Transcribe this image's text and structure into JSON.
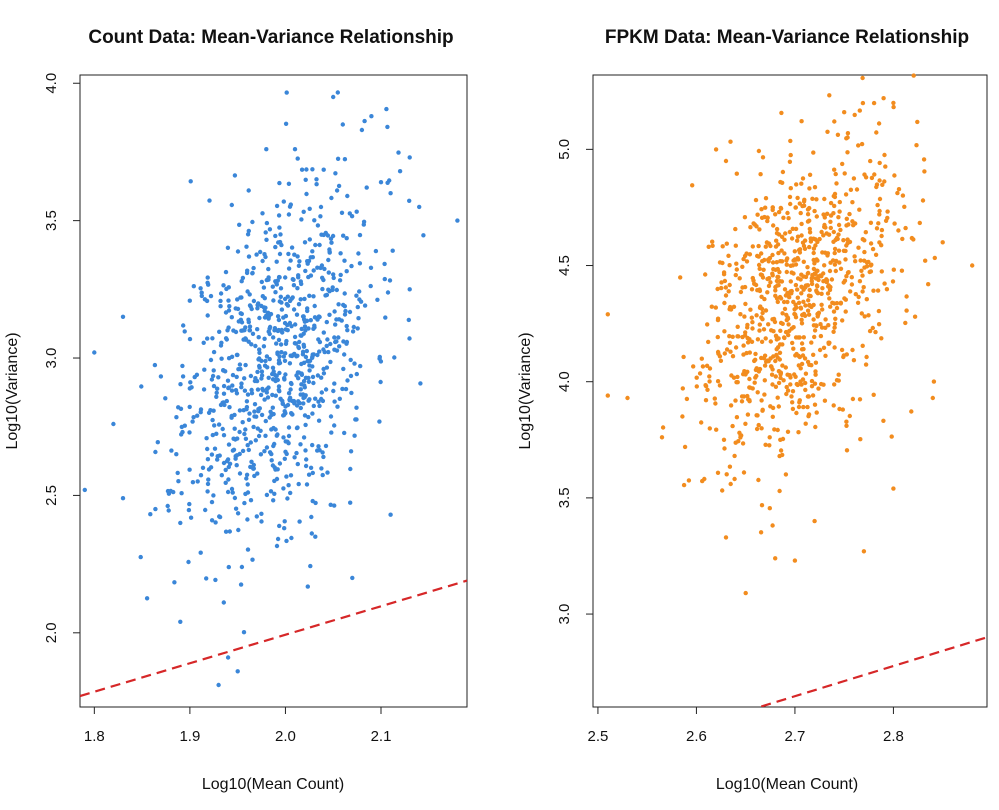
{
  "chart_data": [
    {
      "type": "scatter",
      "title": "Count Data: Mean-Variance Relationship",
      "xlabel": "Log10(Mean Count)",
      "ylabel": "Log10(Variance)",
      "xlim": [
        1.785,
        2.19
      ],
      "ylim": [
        1.73,
        4.03
      ],
      "x_ticks": [
        1.8,
        1.9,
        2.0,
        2.1
      ],
      "x_tick_labels": [
        "1.8",
        "1.9",
        "2.0",
        "2.1"
      ],
      "y_ticks": [
        2.0,
        2.5,
        3.0,
        3.5,
        4.0
      ],
      "y_tick_labels": [
        "2.0",
        "2.5",
        "3.0",
        "3.5",
        "4.0"
      ],
      "point_color": "#3a86d8",
      "grid": false,
      "reference_line": {
        "style": "dashed",
        "color": "#d62728",
        "x": [
          1.785,
          2.19
        ],
        "y": [
          1.77,
          2.19
        ]
      },
      "distribution": {
        "n_points": 900,
        "x_mean": 1.99,
        "x_sd": 0.05,
        "y_mean": 3.0,
        "y_sd": 0.33,
        "correlation": 0.4,
        "seed": 11
      },
      "points": [
        {
          "x": 2.05,
          "y": 3.95
        },
        {
          "x": 2.09,
          "y": 3.88
        },
        {
          "x": 2.08,
          "y": 3.83
        },
        {
          "x": 2.06,
          "y": 3.85
        },
        {
          "x": 1.98,
          "y": 3.76
        },
        {
          "x": 2.01,
          "y": 3.76
        },
        {
          "x": 2.13,
          "y": 3.73
        },
        {
          "x": 2.12,
          "y": 3.68
        },
        {
          "x": 2.1,
          "y": 3.64
        },
        {
          "x": 2.11,
          "y": 3.6
        },
        {
          "x": 2.14,
          "y": 3.55
        },
        {
          "x": 2.18,
          "y": 3.5
        },
        {
          "x": 1.79,
          "y": 2.52
        },
        {
          "x": 1.8,
          "y": 3.02
        },
        {
          "x": 1.82,
          "y": 2.76
        },
        {
          "x": 1.83,
          "y": 3.15
        },
        {
          "x": 1.83,
          "y": 2.49
        },
        {
          "x": 1.89,
          "y": 2.04
        },
        {
          "x": 1.93,
          "y": 1.81
        },
        {
          "x": 1.94,
          "y": 1.91
        },
        {
          "x": 1.95,
          "y": 1.86
        },
        {
          "x": 2.07,
          "y": 2.2
        },
        {
          "x": 2.11,
          "y": 2.43
        },
        {
          "x": 2.13,
          "y": 3.25
        }
      ]
    },
    {
      "type": "scatter",
      "title": "FPKM Data: Mean-Variance Relationship",
      "xlabel": "Log10(Mean Count)",
      "ylabel": "Log10(Variance)",
      "xlim": [
        2.495,
        2.895
      ],
      "ylim": [
        2.6,
        5.32
      ],
      "x_ticks": [
        2.5,
        2.6,
        2.7,
        2.8
      ],
      "x_tick_labels": [
        "2.5",
        "2.6",
        "2.7",
        "2.8"
      ],
      "y_ticks": [
        3.0,
        3.5,
        4.0,
        4.5,
        5.0
      ],
      "y_tick_labels": [
        "3.0",
        "3.5",
        "4.0",
        "4.5",
        "5.0"
      ],
      "point_color": "#f28c1e",
      "grid": false,
      "reference_line": {
        "style": "dashed",
        "color": "#d62728",
        "x": [
          2.495,
          2.895
        ],
        "y": [
          2.38,
          2.9
        ]
      },
      "distribution": {
        "n_points": 900,
        "x_mean": 2.7,
        "x_sd": 0.05,
        "y_mean": 4.35,
        "y_sd": 0.33,
        "correlation": 0.4,
        "seed": 29
      },
      "points": [
        {
          "x": 2.79,
          "y": 5.22
        },
        {
          "x": 2.8,
          "y": 5.2
        },
        {
          "x": 2.75,
          "y": 5.16
        },
        {
          "x": 2.74,
          "y": 5.12
        },
        {
          "x": 2.62,
          "y": 5.0
        },
        {
          "x": 2.63,
          "y": 4.95
        },
        {
          "x": 2.88,
          "y": 4.5
        },
        {
          "x": 2.51,
          "y": 4.29
        },
        {
          "x": 2.51,
          "y": 3.94
        },
        {
          "x": 2.53,
          "y": 3.93
        },
        {
          "x": 2.65,
          "y": 3.09
        },
        {
          "x": 2.63,
          "y": 3.33
        },
        {
          "x": 2.68,
          "y": 3.24
        },
        {
          "x": 2.7,
          "y": 3.23
        },
        {
          "x": 2.72,
          "y": 3.4
        },
        {
          "x": 2.77,
          "y": 3.27
        },
        {
          "x": 2.8,
          "y": 3.54
        },
        {
          "x": 2.84,
          "y": 3.93
        },
        {
          "x": 2.85,
          "y": 4.6
        },
        {
          "x": 2.83,
          "y": 4.78
        }
      ]
    }
  ]
}
